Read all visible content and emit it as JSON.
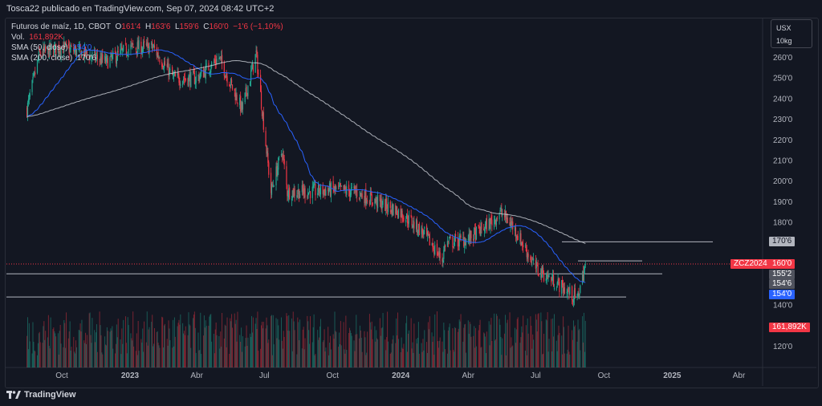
{
  "header": {
    "title": "Tosca22 publicado en TradingView.com, Sep 07, 2024 08:42 UTC+2"
  },
  "legend": {
    "symbol": "Futuros de maíz, 1D, CBOT",
    "o_label": "O",
    "o": "161'4",
    "h_label": "H",
    "h": "163'6",
    "l_label": "L",
    "l": "159'6",
    "c_label": "C",
    "c": "160'0",
    "change": "−1'6 (−1,10%)",
    "vol_label": "Vol.",
    "vol": "161,892K",
    "sma50_label": "SMA (50, close)",
    "sma50": "154'0",
    "sma200_label": "SMA (200, close)",
    "sma200": "170'6"
  },
  "units": {
    "line1": "USX",
    "line2": "10kg"
  },
  "price_labels": {
    "sma200": "170'6",
    "symbol": "ZCZ2024",
    "last": "160'0",
    "line1": "155'2",
    "line2": "154'6",
    "sma50": "154'0",
    "volume": "161,892K"
  },
  "footer": {
    "brand": "TradingView"
  },
  "colors": {
    "up": "#22ab94",
    "down": "#f23645",
    "sma50": "#2962ff",
    "sma200": "#d1d4dc",
    "bg": "#131722"
  },
  "chart_data": {
    "type": "candlestick",
    "title": "Futuros de maíz, 1D, CBOT",
    "y_ticks": [
      "260'0",
      "250'0",
      "240'0",
      "230'0",
      "220'0",
      "210'0",
      "200'0",
      "190'0",
      "180'0",
      "170'0",
      "160'0",
      "150'0",
      "140'0",
      "120'0"
    ],
    "x_ticks": [
      "Oct",
      "2023",
      "Abr",
      "Jul",
      "Oct",
      "2024",
      "Abr",
      "Jul",
      "Oct",
      "2025",
      "Abr"
    ],
    "ylim": [
      118,
      274
    ],
    "approx_close": [
      [
        "2022-08-15",
        235
      ],
      [
        "2022-09-01",
        262
      ],
      [
        "2022-10-01",
        265
      ],
      [
        "2022-11-01",
        262
      ],
      [
        "2022-12-01",
        258
      ],
      [
        "2023-01-01",
        265
      ],
      [
        "2023-02-01",
        265
      ],
      [
        "2023-03-01",
        250
      ],
      [
        "2023-04-01",
        250
      ],
      [
        "2023-05-01",
        260
      ],
      [
        "2023-06-01",
        235
      ],
      [
        "2023-06-20",
        262
      ],
      [
        "2023-07-01",
        225
      ],
      [
        "2023-07-10",
        195
      ],
      [
        "2023-07-25",
        215
      ],
      [
        "2023-08-01",
        195
      ],
      [
        "2023-09-01",
        195
      ],
      [
        "2023-10-01",
        196
      ],
      [
        "2023-11-01",
        195
      ],
      [
        "2023-12-01",
        190
      ],
      [
        "2024-01-01",
        185
      ],
      [
        "2024-02-01",
        175
      ],
      [
        "2024-02-26",
        162
      ],
      [
        "2024-03-01",
        170
      ],
      [
        "2024-04-01",
        172
      ],
      [
        "2024-05-01",
        180
      ],
      [
        "2024-05-15",
        185
      ],
      [
        "2024-06-01",
        178
      ],
      [
        "2024-07-01",
        158
      ],
      [
        "2024-08-01",
        150
      ],
      [
        "2024-08-26",
        143
      ],
      [
        "2024-09-06",
        160
      ]
    ],
    "horizontal_lines": [
      170.75,
      160,
      155.25,
      144
    ],
    "series": [
      {
        "name": "SMA (50, close)"
      },
      {
        "name": "SMA (200, close)"
      }
    ]
  }
}
